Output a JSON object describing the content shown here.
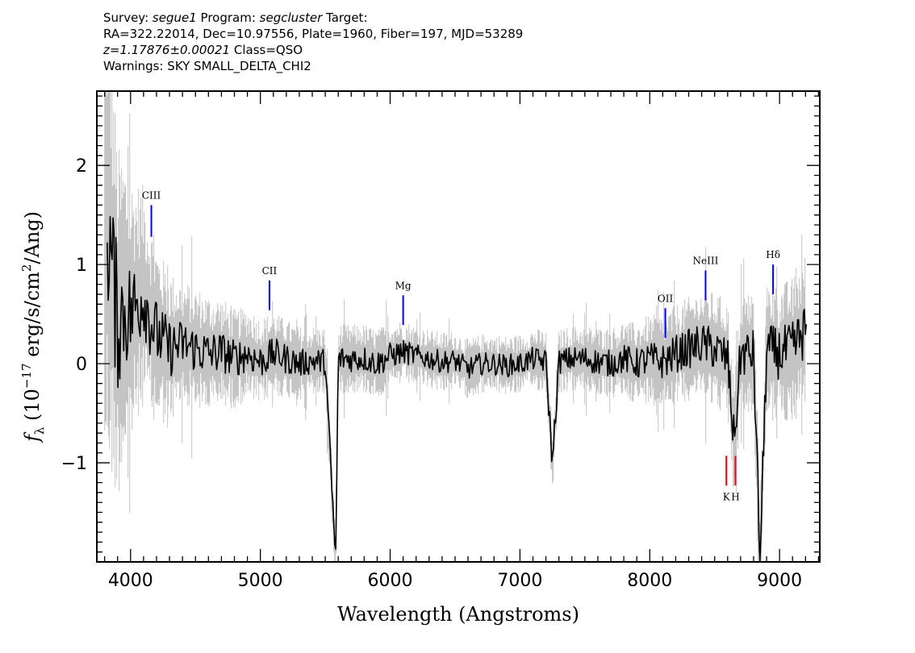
{
  "header": {
    "survey_label": "Survey:",
    "survey_value": "segue1",
    "program_label": "Program:",
    "program_value": "segcluster",
    "target_label": "Target:",
    "line2": "RA=322.22014, Dec=10.97556, Plate=1960, Fiber=197, MJD=53289",
    "redshift": "z=1.17876±0.00021",
    "class_text": "Class=QSO",
    "warnings": "Warnings: SKY SMALL_DELTA_CHI2"
  },
  "chart_data": {
    "type": "line",
    "xlabel": "Wavelength (Angstroms)",
    "ylabel_prefix": "f",
    "ylabel_sub": "λ",
    "ylabel_main": " (10",
    "ylabel_exp": "−17",
    "ylabel_rest": " erg/s/cm",
    "ylabel_exp2": "2",
    "ylabel_tail": "/Ang)",
    "xlim": [
      3740,
      9310
    ],
    "ylim": [
      -2.0,
      2.75
    ],
    "x_ticks": [
      4000,
      5000,
      6000,
      7000,
      8000,
      9000
    ],
    "x_tick_labels": [
      "4000",
      "5000",
      "6000",
      "7000",
      "8000",
      "9000"
    ],
    "y_ticks": [
      -1,
      0,
      1,
      2
    ],
    "y_tick_labels": [
      "−1",
      "0",
      "1",
      "2"
    ],
    "series": [
      {
        "role": "flux",
        "color": "#000000",
        "x": [
          3820,
          3860,
          3900,
          3950,
          4000,
          4050,
          4100,
          4150,
          4200,
          4300,
          4400,
          4500,
          4600,
          4700,
          4800,
          4900,
          5000,
          5100,
          5200,
          5300,
          5400,
          5500,
          5580,
          5600,
          5700,
          5800,
          5900,
          6000,
          6100,
          6200,
          6300,
          6400,
          6500,
          6600,
          6700,
          6800,
          6900,
          7000,
          7100,
          7200,
          7250,
          7300,
          7400,
          7500,
          7600,
          7700,
          7800,
          7900,
          8000,
          8100,
          8200,
          8300,
          8400,
          8500,
          8600,
          8650,
          8700,
          8800,
          8850,
          8900,
          9000,
          9100,
          9200
        ],
        "y": [
          1.5,
          0.9,
          0.4,
          0.55,
          0.5,
          0.6,
          0.7,
          0.45,
          0.3,
          0.15,
          0.2,
          0.15,
          0.1,
          0.12,
          0.05,
          0.1,
          0.02,
          0.1,
          0.05,
          0.0,
          0.03,
          0.02,
          -2.0,
          0.05,
          0.05,
          0.05,
          0.0,
          0.08,
          0.12,
          0.08,
          0.05,
          0.02,
          0.03,
          -0.05,
          0.0,
          0.0,
          -0.02,
          0.0,
          0.05,
          0.02,
          -1.0,
          0.02,
          0.05,
          0.05,
          0.02,
          0.0,
          0.05,
          0.0,
          0.05,
          0.02,
          0.1,
          0.15,
          0.2,
          0.15,
          0.05,
          -0.8,
          0.1,
          0.1,
          -2.0,
          0.15,
          0.1,
          0.15,
          0.35
        ]
      },
      {
        "role": "noise",
        "color": "#c4c4c4",
        "x": [
          3800,
          3900,
          4000,
          4100,
          4200,
          4400,
          4600,
          4800,
          5000,
          5200,
          5400,
          5600,
          5800,
          6000,
          6200,
          6400,
          6600,
          6800,
          7000,
          7200,
          7400,
          7600,
          7800,
          8000,
          8200,
          8400,
          8600,
          8800,
          9000,
          9200
        ],
        "amplitude": [
          2.8,
          1.8,
          1.4,
          1.1,
          0.9,
          0.65,
          0.6,
          0.5,
          0.45,
          0.4,
          0.35,
          0.35,
          0.35,
          0.35,
          0.3,
          0.3,
          0.3,
          0.3,
          0.3,
          0.32,
          0.33,
          0.35,
          0.38,
          0.45,
          0.5,
          0.55,
          0.6,
          0.65,
          0.7,
          0.75
        ]
      }
    ],
    "lines": [
      {
        "label": "CIII",
        "x": 4160,
        "y_bottom": 1.28,
        "y_top": 1.6,
        "color": "#0000ff"
      },
      {
        "label": "CII",
        "x": 5070,
        "y_bottom": 0.54,
        "y_top": 0.84,
        "color": "#0000ff"
      },
      {
        "label": "Mg",
        "x": 6100,
        "y_bottom": 0.39,
        "y_top": 0.69,
        "color": "#0000ff"
      },
      {
        "label": "OII",
        "x": 8120,
        "y_bottom": 0.26,
        "y_top": 0.56,
        "color": "#0000ff"
      },
      {
        "label": "NeIII",
        "x": 8430,
        "y_bottom": 0.64,
        "y_top": 0.94,
        "color": "#0000ff"
      },
      {
        "label": "Hδ",
        "x": 8950,
        "y_bottom": 0.7,
        "y_top": 1.0,
        "color": "#0000ff"
      },
      {
        "label": "K",
        "x": 8590,
        "y_bottom": -1.23,
        "y_top": -0.93,
        "color": "#ff0000",
        "label_below": true
      },
      {
        "label": "H",
        "x": 8660,
        "y_bottom": -1.23,
        "y_top": -0.93,
        "color": "#ff0000",
        "label_below": true
      }
    ]
  }
}
